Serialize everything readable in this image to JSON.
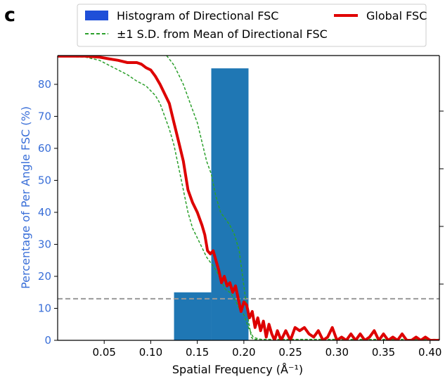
{
  "panel_label": "c",
  "chart_data": {
    "type": "bar",
    "xlabel": "Spatial Frequency (Å⁻¹)",
    "ylabel": "Percentage of Per Angle FSC (%)",
    "xlim": [
      0.0,
      0.41
    ],
    "ylim": [
      0,
      89
    ],
    "x_ticks": [
      "0.05",
      "0.10",
      "0.15",
      "0.20",
      "0.25",
      "0.30",
      "0.35",
      "0.40"
    ],
    "x_tick_values": [
      0.05,
      0.1,
      0.15,
      0.2,
      0.25,
      0.3,
      0.35,
      0.4
    ],
    "y_ticks": [
      "0",
      "10",
      "20",
      "30",
      "40",
      "50",
      "60",
      "70",
      "80"
    ],
    "y_tick_values": [
      0,
      10,
      20,
      30,
      40,
      50,
      60,
      70,
      80
    ],
    "grid": false,
    "legend_position": "top (above plot, two columns)",
    "legend": [
      {
        "label": "Histogram of Directional FSC",
        "style": "patch",
        "color": "#1f77b4"
      },
      {
        "label": "Global FSC",
        "style": "line",
        "color": "#e00000"
      },
      {
        "label": "±1 S.D. from Mean of Directional FSC",
        "style": "dashed",
        "color": "#2ca02c"
      }
    ],
    "histogram": {
      "color": "#1f77b4",
      "bins": [
        {
          "x0": 0.125,
          "x1": 0.165,
          "value": 15
        },
        {
          "x0": 0.165,
          "x1": 0.205,
          "value": 85
        }
      ]
    },
    "threshold_line": {
      "y": 13,
      "color": "#999999",
      "style": "dashed"
    },
    "global_fsc": {
      "color": "#dd0000",
      "points": [
        [
          0.0,
          88.8
        ],
        [
          0.03,
          88.8
        ],
        [
          0.045,
          88.5
        ],
        [
          0.055,
          88
        ],
        [
          0.065,
          87.5
        ],
        [
          0.075,
          86.8
        ],
        [
          0.085,
          86.8
        ],
        [
          0.09,
          86.3
        ],
        [
          0.095,
          85.2
        ],
        [
          0.1,
          84.5
        ],
        [
          0.105,
          82.5
        ],
        [
          0.11,
          80
        ],
        [
          0.115,
          77
        ],
        [
          0.12,
          74
        ],
        [
          0.125,
          68
        ],
        [
          0.13,
          62
        ],
        [
          0.135,
          56
        ],
        [
          0.14,
          47
        ],
        [
          0.145,
          43
        ],
        [
          0.15,
          40
        ],
        [
          0.155,
          36
        ],
        [
          0.158,
          33
        ],
        [
          0.161,
          28
        ],
        [
          0.164,
          27
        ],
        [
          0.167,
          28
        ],
        [
          0.17,
          25
        ],
        [
          0.173,
          22
        ],
        [
          0.176,
          18
        ],
        [
          0.179,
          20
        ],
        [
          0.182,
          17
        ],
        [
          0.185,
          18
        ],
        [
          0.188,
          15
        ],
        [
          0.191,
          17
        ],
        [
          0.194,
          13
        ],
        [
          0.197,
          9
        ],
        [
          0.2,
          12
        ],
        [
          0.203,
          11
        ],
        [
          0.206,
          7
        ],
        [
          0.209,
          9
        ],
        [
          0.212,
          4
        ],
        [
          0.215,
          7
        ],
        [
          0.218,
          3
        ],
        [
          0.221,
          6
        ],
        [
          0.224,
          1
        ],
        [
          0.227,
          5
        ],
        [
          0.23,
          2
        ],
        [
          0.233,
          0
        ],
        [
          0.236,
          3
        ],
        [
          0.24,
          0
        ],
        [
          0.245,
          3
        ],
        [
          0.25,
          0
        ],
        [
          0.255,
          4
        ],
        [
          0.26,
          3
        ],
        [
          0.265,
          4
        ],
        [
          0.27,
          2
        ],
        [
          0.275,
          1
        ],
        [
          0.28,
          3
        ],
        [
          0.285,
          0
        ],
        [
          0.29,
          1
        ],
        [
          0.295,
          4
        ],
        [
          0.3,
          0
        ],
        [
          0.305,
          1
        ],
        [
          0.31,
          0
        ],
        [
          0.315,
          2
        ],
        [
          0.32,
          0
        ],
        [
          0.325,
          2
        ],
        [
          0.33,
          0
        ],
        [
          0.335,
          1
        ],
        [
          0.34,
          3
        ],
        [
          0.345,
          0
        ],
        [
          0.35,
          2
        ],
        [
          0.355,
          0
        ],
        [
          0.36,
          1
        ],
        [
          0.365,
          0
        ],
        [
          0.37,
          2
        ],
        [
          0.375,
          0
        ],
        [
          0.38,
          0
        ],
        [
          0.385,
          1
        ],
        [
          0.39,
          0
        ],
        [
          0.395,
          1
        ],
        [
          0.4,
          0
        ],
        [
          0.41,
          0
        ]
      ]
    },
    "sd_lower": {
      "color": "#2ca02c",
      "points": [
        [
          0.0,
          88.8
        ],
        [
          0.03,
          88.5
        ],
        [
          0.045,
          87.5
        ],
        [
          0.055,
          86
        ],
        [
          0.065,
          84.5
        ],
        [
          0.075,
          83
        ],
        [
          0.085,
          81
        ],
        [
          0.095,
          79.5
        ],
        [
          0.1,
          78
        ],
        [
          0.105,
          76.5
        ],
        [
          0.11,
          74
        ],
        [
          0.115,
          70
        ],
        [
          0.12,
          66
        ],
        [
          0.125,
          61
        ],
        [
          0.13,
          54
        ],
        [
          0.135,
          47
        ],
        [
          0.14,
          40
        ],
        [
          0.145,
          35
        ],
        [
          0.15,
          32
        ],
        [
          0.155,
          29
        ],
        [
          0.16,
          26
        ],
        [
          0.165,
          24
        ],
        [
          0.17,
          22
        ],
        [
          0.175,
          19
        ],
        [
          0.18,
          16
        ],
        [
          0.185,
          15
        ],
        [
          0.19,
          13
        ],
        [
          0.195,
          10
        ],
        [
          0.2,
          8
        ],
        [
          0.205,
          4
        ],
        [
          0.21,
          1
        ],
        [
          0.215,
          0.5
        ],
        [
          0.22,
          0.2
        ],
        [
          0.41,
          0.2
        ]
      ]
    },
    "sd_upper": {
      "color": "#2ca02c",
      "points": [
        [
          0.117,
          89
        ],
        [
          0.125,
          86
        ],
        [
          0.13,
          83
        ],
        [
          0.135,
          80
        ],
        [
          0.14,
          76
        ],
        [
          0.145,
          72
        ],
        [
          0.15,
          68
        ],
        [
          0.155,
          62
        ],
        [
          0.16,
          56
        ],
        [
          0.165,
          52
        ],
        [
          0.17,
          45
        ],
        [
          0.175,
          40
        ],
        [
          0.18,
          38
        ],
        [
          0.185,
          36
        ],
        [
          0.19,
          33
        ],
        [
          0.195,
          28
        ],
        [
          0.2,
          17
        ],
        [
          0.205,
          6
        ],
        [
          0.208,
          1
        ],
        [
          0.21,
          0.3
        ],
        [
          0.41,
          0.3
        ]
      ]
    }
  }
}
